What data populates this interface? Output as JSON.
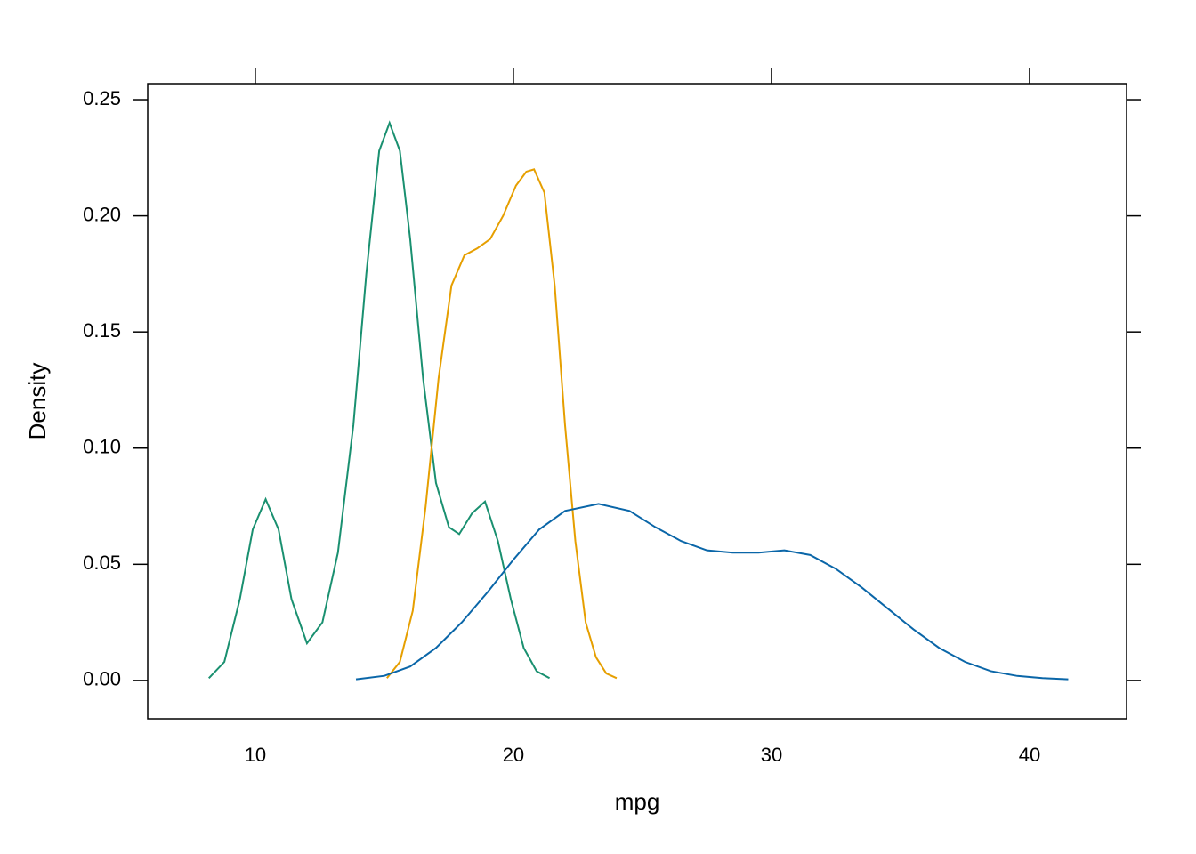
{
  "chart_data": {
    "type": "line",
    "x_label": "mpg",
    "y_label": "Density",
    "xlim": [
      5.83,
      43.76
    ],
    "xticks": [
      10,
      20,
      30,
      40
    ],
    "ylim": [
      -0.0165,
      0.2569
    ],
    "yticks": [
      {
        "value": 0,
        "label": "0.00"
      },
      {
        "value": 0.05,
        "label": "0.05"
      },
      {
        "value": 0.1,
        "label": "0.10"
      },
      {
        "value": 0.15,
        "label": "0.15"
      },
      {
        "value": 0.2,
        "label": "0.20"
      },
      {
        "value": 0.25,
        "label": "0.25"
      }
    ],
    "series": [
      {
        "color": "#1a9070",
        "x": [
          8.2,
          8.8,
          9.4,
          9.9,
          10.4,
          10.9,
          11.4,
          12.0,
          12.6,
          13.2,
          13.8,
          14.3,
          14.8,
          15.2,
          15.6,
          16.0,
          16.5,
          17.0,
          17.5,
          17.9,
          18.4,
          18.9,
          19.4,
          19.9,
          20.4,
          20.9,
          21.4
        ],
        "values": [
          0.001,
          0.008,
          0.035,
          0.065,
          0.078,
          0.065,
          0.035,
          0.016,
          0.025,
          0.055,
          0.11,
          0.175,
          0.228,
          0.24,
          0.228,
          0.19,
          0.13,
          0.085,
          0.066,
          0.063,
          0.072,
          0.077,
          0.06,
          0.035,
          0.014,
          0.004,
          0.001
        ]
      },
      {
        "color": "#e69f00",
        "x": [
          15.1,
          15.6,
          16.1,
          16.6,
          17.1,
          17.6,
          18.1,
          18.6,
          19.1,
          19.6,
          20.1,
          20.5,
          20.8,
          21.2,
          21.6,
          22.0,
          22.4,
          22.8,
          23.2,
          23.6,
          24.0
        ],
        "values": [
          0.001,
          0.008,
          0.03,
          0.075,
          0.13,
          0.17,
          0.183,
          0.186,
          0.19,
          0.2,
          0.213,
          0.219,
          0.22,
          0.21,
          0.17,
          0.11,
          0.06,
          0.025,
          0.01,
          0.003,
          0.001
        ]
      },
      {
        "color": "#0a66a8",
        "x": [
          13.9,
          15,
          16,
          17,
          18,
          19,
          20,
          21,
          22,
          23.3,
          24.5,
          25.5,
          26.5,
          27.5,
          28.5,
          29.5,
          30.5,
          31.5,
          32.5,
          33.5,
          34.5,
          35.5,
          36.5,
          37.5,
          38.5,
          39.5,
          40.5,
          41.5
        ],
        "values": [
          0.0005,
          0.002,
          0.006,
          0.014,
          0.025,
          0.038,
          0.052,
          0.065,
          0.073,
          0.076,
          0.073,
          0.066,
          0.06,
          0.056,
          0.055,
          0.055,
          0.056,
          0.054,
          0.048,
          0.04,
          0.031,
          0.022,
          0.014,
          0.008,
          0.004,
          0.002,
          0.001,
          0.0005
        ]
      }
    ]
  }
}
